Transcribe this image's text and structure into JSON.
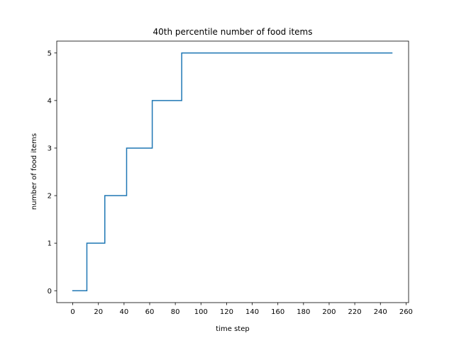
{
  "chart_data": {
    "type": "line",
    "title": "40th percentile number of food items",
    "xlabel": "time step",
    "ylabel": "number of food items",
    "xlim": [
      -12.5,
      262
    ],
    "ylim": [
      -0.25,
      5.25
    ],
    "xticks": [
      0,
      20,
      40,
      60,
      80,
      100,
      120,
      140,
      160,
      180,
      200,
      220,
      240,
      260
    ],
    "xtick_labels": [
      "0",
      "20",
      "40",
      "60",
      "80",
      "100",
      "120",
      "140",
      "160",
      "180",
      "200",
      "220",
      "240",
      "260"
    ],
    "yticks": [
      0,
      1,
      2,
      3,
      4,
      5
    ],
    "ytick_labels": [
      "0",
      "1",
      "2",
      "3",
      "4",
      "5"
    ],
    "grid": false,
    "series": [
      {
        "color": "#1f77b4",
        "step_points": [
          [
            0,
            0
          ],
          [
            11,
            0
          ],
          [
            11,
            1
          ],
          [
            25,
            1
          ],
          [
            25,
            2
          ],
          [
            42,
            2
          ],
          [
            42,
            3
          ],
          [
            62,
            3
          ],
          [
            62,
            4
          ],
          [
            85,
            4
          ],
          [
            85,
            5
          ],
          [
            249,
            5
          ]
        ]
      }
    ]
  }
}
